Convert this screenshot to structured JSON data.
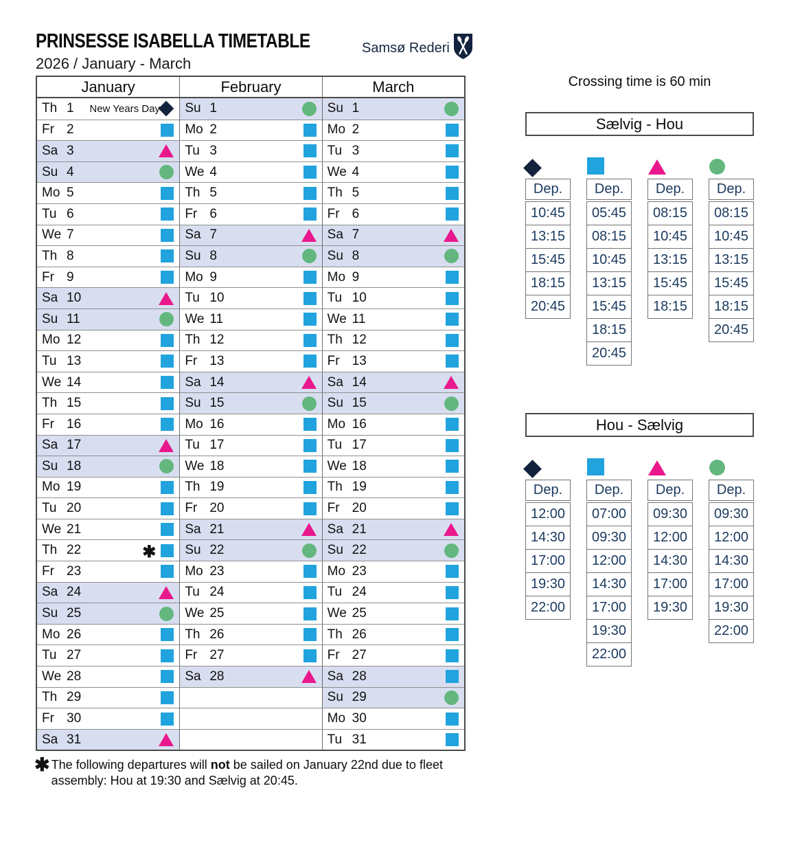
{
  "page": {
    "title": "PRINSESSE ISABELLA TIMETABLE",
    "subtitle": "2026 / January - March",
    "logo_text": "Samsø Rederi",
    "crossing_note": "Crossing time is 60 min"
  },
  "colors": {
    "diamond": "#13233e",
    "square": "#21a3de",
    "triangle": "#e9188c",
    "circle": "#63b77e",
    "weekend_row_bg": "#d8def0",
    "time_text": "#1b3a5e"
  },
  "calendar": {
    "months": [
      {
        "name": "January",
        "days": [
          {
            "dow": "Th",
            "date": "1",
            "symbol": "diamond",
            "note": "New Years Day"
          },
          {
            "dow": "Fr",
            "date": "2",
            "symbol": "square"
          },
          {
            "dow": "Sa",
            "date": "3",
            "symbol": "triangle"
          },
          {
            "dow": "Su",
            "date": "4",
            "symbol": "circle"
          },
          {
            "dow": "Mo",
            "date": "5",
            "symbol": "square"
          },
          {
            "dow": "Tu",
            "date": "6",
            "symbol": "square"
          },
          {
            "dow": "We",
            "date": "7",
            "symbol": "square"
          },
          {
            "dow": "Th",
            "date": "8",
            "symbol": "square"
          },
          {
            "dow": "Fr",
            "date": "9",
            "symbol": "square"
          },
          {
            "dow": "Sa",
            "date": "10",
            "symbol": "triangle"
          },
          {
            "dow": "Su",
            "date": "11",
            "symbol": "circle"
          },
          {
            "dow": "Mo",
            "date": "12",
            "symbol": "square"
          },
          {
            "dow": "Tu",
            "date": "13",
            "symbol": "square"
          },
          {
            "dow": "We",
            "date": "14",
            "symbol": "square"
          },
          {
            "dow": "Th",
            "date": "15",
            "symbol": "square"
          },
          {
            "dow": "Fr",
            "date": "16",
            "symbol": "square"
          },
          {
            "dow": "Sa",
            "date": "17",
            "symbol": "triangle"
          },
          {
            "dow": "Su",
            "date": "18",
            "symbol": "circle"
          },
          {
            "dow": "Mo",
            "date": "19",
            "symbol": "square"
          },
          {
            "dow": "Tu",
            "date": "20",
            "symbol": "square"
          },
          {
            "dow": "We",
            "date": "21",
            "symbol": "square"
          },
          {
            "dow": "Th",
            "date": "22",
            "symbol": "square",
            "asterisk": true
          },
          {
            "dow": "Fr",
            "date": "23",
            "symbol": "square"
          },
          {
            "dow": "Sa",
            "date": "24",
            "symbol": "triangle"
          },
          {
            "dow": "Su",
            "date": "25",
            "symbol": "circle"
          },
          {
            "dow": "Mo",
            "date": "26",
            "symbol": "square"
          },
          {
            "dow": "Tu",
            "date": "27",
            "symbol": "square"
          },
          {
            "dow": "We",
            "date": "28",
            "symbol": "square"
          },
          {
            "dow": "Th",
            "date": "29",
            "symbol": "square"
          },
          {
            "dow": "Fr",
            "date": "30",
            "symbol": "square"
          },
          {
            "dow": "Sa",
            "date": "31",
            "symbol": "triangle"
          }
        ]
      },
      {
        "name": "February",
        "days": [
          {
            "dow": "Su",
            "date": "1",
            "symbol": "circle"
          },
          {
            "dow": "Mo",
            "date": "2",
            "symbol": "square"
          },
          {
            "dow": "Tu",
            "date": "3",
            "symbol": "square"
          },
          {
            "dow": "We",
            "date": "4",
            "symbol": "square"
          },
          {
            "dow": "Th",
            "date": "5",
            "symbol": "square"
          },
          {
            "dow": "Fr",
            "date": "6",
            "symbol": "square"
          },
          {
            "dow": "Sa",
            "date": "7",
            "symbol": "triangle"
          },
          {
            "dow": "Su",
            "date": "8",
            "symbol": "circle"
          },
          {
            "dow": "Mo",
            "date": "9",
            "symbol": "square"
          },
          {
            "dow": "Tu",
            "date": "10",
            "symbol": "square"
          },
          {
            "dow": "We",
            "date": "11",
            "symbol": "square"
          },
          {
            "dow": "Th",
            "date": "12",
            "symbol": "square"
          },
          {
            "dow": "Fr",
            "date": "13",
            "symbol": "square"
          },
          {
            "dow": "Sa",
            "date": "14",
            "symbol": "triangle"
          },
          {
            "dow": "Su",
            "date": "15",
            "symbol": "circle"
          },
          {
            "dow": "Mo",
            "date": "16",
            "symbol": "square"
          },
          {
            "dow": "Tu",
            "date": "17",
            "symbol": "square"
          },
          {
            "dow": "We",
            "date": "18",
            "symbol": "square"
          },
          {
            "dow": "Th",
            "date": "19",
            "symbol": "square"
          },
          {
            "dow": "Fr",
            "date": "20",
            "symbol": "square"
          },
          {
            "dow": "Sa",
            "date": "21",
            "symbol": "triangle"
          },
          {
            "dow": "Su",
            "date": "22",
            "symbol": "circle"
          },
          {
            "dow": "Mo",
            "date": "23",
            "symbol": "square"
          },
          {
            "dow": "Tu",
            "date": "24",
            "symbol": "square"
          },
          {
            "dow": "We",
            "date": "25",
            "symbol": "square"
          },
          {
            "dow": "Th",
            "date": "26",
            "symbol": "square"
          },
          {
            "dow": "Fr",
            "date": "27",
            "symbol": "square"
          },
          {
            "dow": "Sa",
            "date": "28",
            "symbol": "triangle"
          },
          {
            "empty": true
          },
          {
            "empty": true
          },
          {
            "empty": true
          }
        ]
      },
      {
        "name": "March",
        "days": [
          {
            "dow": "Su",
            "date": "1",
            "symbol": "circle"
          },
          {
            "dow": "Mo",
            "date": "2",
            "symbol": "square"
          },
          {
            "dow": "Tu",
            "date": "3",
            "symbol": "square"
          },
          {
            "dow": "We",
            "date": "4",
            "symbol": "square"
          },
          {
            "dow": "Th",
            "date": "5",
            "symbol": "square"
          },
          {
            "dow": "Fr",
            "date": "6",
            "symbol": "square"
          },
          {
            "dow": "Sa",
            "date": "7",
            "symbol": "triangle"
          },
          {
            "dow": "Su",
            "date": "8",
            "symbol": "circle"
          },
          {
            "dow": "Mo",
            "date": "9",
            "symbol": "square"
          },
          {
            "dow": "Tu",
            "date": "10",
            "symbol": "square"
          },
          {
            "dow": "We",
            "date": "11",
            "symbol": "square"
          },
          {
            "dow": "Th",
            "date": "12",
            "symbol": "square"
          },
          {
            "dow": "Fr",
            "date": "13",
            "symbol": "square"
          },
          {
            "dow": "Sa",
            "date": "14",
            "symbol": "triangle"
          },
          {
            "dow": "Su",
            "date": "15",
            "symbol": "circle"
          },
          {
            "dow": "Mo",
            "date": "16",
            "symbol": "square"
          },
          {
            "dow": "Tu",
            "date": "17",
            "symbol": "square"
          },
          {
            "dow": "We",
            "date": "18",
            "symbol": "square"
          },
          {
            "dow": "Th",
            "date": "19",
            "symbol": "square"
          },
          {
            "dow": "Fr",
            "date": "20",
            "symbol": "square"
          },
          {
            "dow": "Sa",
            "date": "21",
            "symbol": "triangle"
          },
          {
            "dow": "Su",
            "date": "22",
            "symbol": "circle"
          },
          {
            "dow": "Mo",
            "date": "23",
            "symbol": "square"
          },
          {
            "dow": "Tu",
            "date": "24",
            "symbol": "square"
          },
          {
            "dow": "We",
            "date": "25",
            "symbol": "square"
          },
          {
            "dow": "Th",
            "date": "26",
            "symbol": "square"
          },
          {
            "dow": "Fr",
            "date": "27",
            "symbol": "square"
          },
          {
            "dow": "Sa",
            "date": "28",
            "symbol": "square"
          },
          {
            "dow": "Su",
            "date": "29",
            "symbol": "circle"
          },
          {
            "dow": "Mo",
            "date": "30",
            "symbol": "square"
          },
          {
            "dow": "Tu",
            "date": "31",
            "symbol": "square"
          }
        ]
      }
    ]
  },
  "schedules": [
    {
      "title": "Sælvig - Hou",
      "columns": [
        {
          "symbol": "diamond",
          "header": "Dep.",
          "times": [
            "10:45",
            "13:15",
            "15:45",
            "18:15",
            "20:45"
          ]
        },
        {
          "symbol": "square",
          "header": "Dep.",
          "times": [
            "05:45",
            "08:15",
            "10:45",
            "13:15",
            "15:45",
            "18:15",
            "20:45"
          ]
        },
        {
          "symbol": "triangle",
          "header": "Dep.",
          "times": [
            "08:15",
            "10:45",
            "13:15",
            "15:45",
            "18:15"
          ]
        },
        {
          "symbol": "circle",
          "header": "Dep.",
          "times": [
            "08:15",
            "10:45",
            "13:15",
            "15:45",
            "18:15",
            "20:45"
          ]
        }
      ]
    },
    {
      "title": "Hou - Sælvig",
      "columns": [
        {
          "symbol": "diamond",
          "header": "Dep.",
          "times": [
            "12:00",
            "14:30",
            "17:00",
            "19:30",
            "22:00"
          ]
        },
        {
          "symbol": "square",
          "header": "Dep.",
          "times": [
            "07:00",
            "09:30",
            "12:00",
            "14:30",
            "17:00",
            "19:30",
            "22:00"
          ]
        },
        {
          "symbol": "triangle",
          "header": "Dep.",
          "times": [
            "09:30",
            "12:00",
            "14:30",
            "17:00",
            "19:30"
          ]
        },
        {
          "symbol": "circle",
          "header": "Dep.",
          "times": [
            "09:30",
            "12:00",
            "14:30",
            "17:00",
            "19:30",
            "22:00"
          ]
        }
      ]
    }
  ],
  "footnote": {
    "marker": "✱",
    "before": "The following departures will ",
    "bold": "not",
    "after": " be sailed on January 22nd due to fleet assembly: Hou at 19:30 and Sælvig at 20:45."
  }
}
